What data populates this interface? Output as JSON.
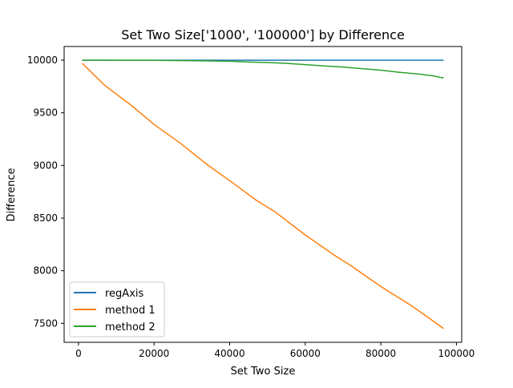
{
  "chart_data": {
    "type": "line",
    "title": "Set Two Size['1000', '100000'] by Difference",
    "xlabel": "Set Two Size",
    "ylabel": "Difference",
    "xlim": [
      -3800,
      101400
    ],
    "ylim": [
      7320,
      10130
    ],
    "xticks": [
      0,
      20000,
      40000,
      60000,
      80000,
      100000
    ],
    "xtick_labels": [
      "0",
      "20000",
      "40000",
      "60000",
      "80000",
      "100000"
    ],
    "yticks": [
      7500,
      8000,
      8500,
      9000,
      9500,
      10000
    ],
    "ytick_labels": [
      "7500",
      "8000",
      "8500",
      "9000",
      "9500",
      "10000"
    ],
    "grid": false,
    "legend_position": "lower-left",
    "series": [
      {
        "name": "regAxis",
        "color": "#1f77b4",
        "x": [
          1000,
          96600
        ],
        "y": [
          10000,
          10000
        ]
      },
      {
        "name": "method 1",
        "color": "#ff7f0e",
        "x": [
          1000,
          7000,
          14000,
          20000,
          27000,
          34000,
          41000,
          47000,
          52000,
          56000,
          60000,
          64000,
          68000,
          72000,
          76000,
          80000,
          84000,
          88000,
          92000,
          96600
        ],
        "y": [
          9970,
          9760,
          9570,
          9390,
          9210,
          9010,
          8830,
          8670,
          8560,
          8450,
          8340,
          8240,
          8140,
          8050,
          7950,
          7850,
          7760,
          7670,
          7570,
          7450
        ]
      },
      {
        "name": "method 2",
        "color": "#2ca02c",
        "x": [
          1000,
          10000,
          20000,
          30000,
          40000,
          45000,
          50000,
          55000,
          60000,
          65000,
          70000,
          75000,
          80000,
          85000,
          90000,
          94000,
          96600
        ],
        "y": [
          10000,
          9999,
          9998,
          9995,
          9990,
          9982,
          9978,
          9970,
          9958,
          9945,
          9935,
          9920,
          9905,
          9885,
          9868,
          9850,
          9830
        ]
      }
    ]
  }
}
